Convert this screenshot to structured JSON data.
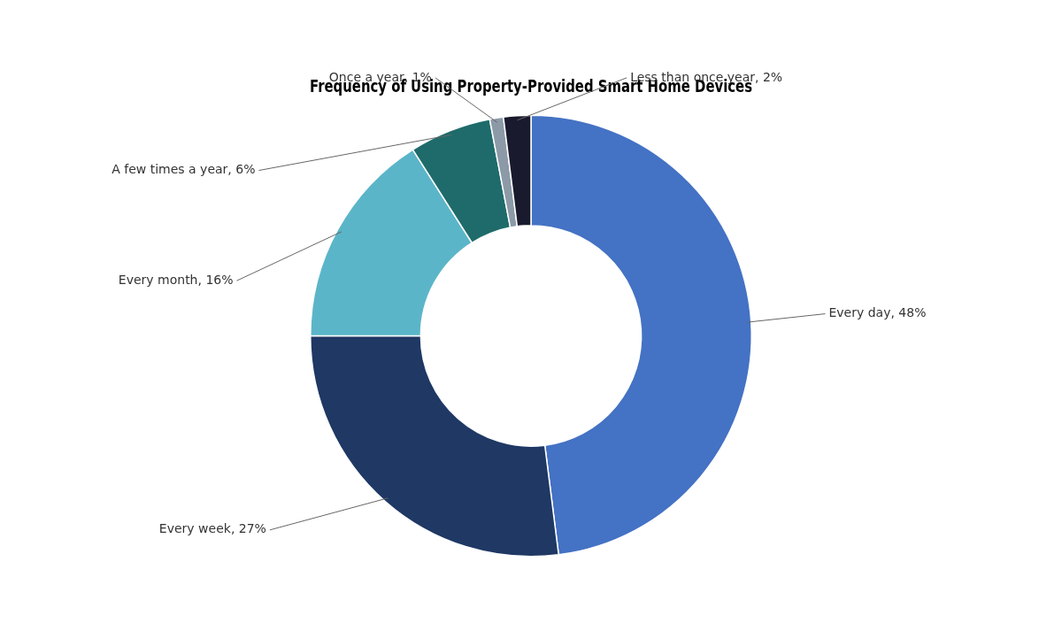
{
  "chart_data": {
    "type": "doughnut",
    "title": "Frequency of Using Property-Provided Smart Home Devices",
    "categories": [
      "Every day, 48%",
      "Every week, 27%",
      "Every month, 16%",
      "A few times a year, 6%",
      "Once a year, 1%",
      "Less than once year, 2%"
    ],
    "values": [
      48,
      27,
      16,
      6,
      1,
      2
    ],
    "colors": [
      "#4472C4",
      "#1F3864",
      "#5BB5C8",
      "#1F6B6B",
      "#8C9AA8",
      "#1A1A2E"
    ]
  }
}
